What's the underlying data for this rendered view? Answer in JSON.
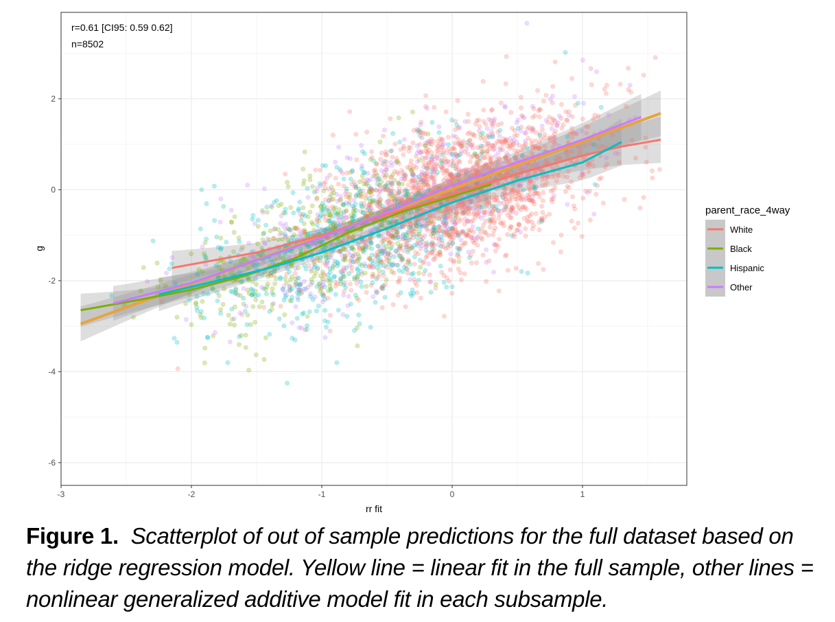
{
  "chart_data": {
    "type": "scatter",
    "annotations": [
      "r=0.61 [CI95: 0.59 0.62]",
      "n=8502"
    ],
    "xlabel": "rr fit",
    "ylabel": "g",
    "xlim": [
      -3.0,
      1.8
    ],
    "ylim": [
      -6.5,
      3.9
    ],
    "x_ticks": [
      -3,
      -2,
      -1,
      0,
      1
    ],
    "y_ticks": [
      -6,
      -4,
      -2,
      0,
      2
    ],
    "grid": true,
    "legend": {
      "title": "parent_race_4way",
      "position": "right",
      "entries": [
        "White",
        "Black",
        "Hispanic",
        "Other"
      ]
    },
    "series": [
      {
        "name": "White",
        "color": "#F8766D",
        "fit_line": [
          [
            -2.15,
            -1.72
          ],
          [
            -1.5,
            -1.38
          ],
          [
            -1.0,
            -1.0
          ],
          [
            -0.5,
            -0.55
          ],
          [
            0.0,
            -0.1
          ],
          [
            0.5,
            0.35
          ],
          [
            1.0,
            0.75
          ],
          [
            1.3,
            0.95
          ],
          [
            1.6,
            1.1
          ]
        ]
      },
      {
        "name": "Black",
        "color": "#7CAE00",
        "fit_line": [
          [
            -2.85,
            -2.65
          ],
          [
            -2.4,
            -2.42
          ],
          [
            -2.0,
            -2.2
          ],
          [
            -1.6,
            -1.9
          ],
          [
            -1.2,
            -1.5
          ],
          [
            -0.8,
            -0.95
          ],
          [
            -0.4,
            -0.5
          ],
          [
            0.0,
            -0.15
          ],
          [
            0.3,
            0.12
          ]
        ]
      },
      {
        "name": "Hispanic",
        "color": "#00BFC4",
        "fit_line": [
          [
            -2.25,
            -2.3
          ],
          [
            -1.8,
            -2.0
          ],
          [
            -1.4,
            -1.72
          ],
          [
            -1.0,
            -1.38
          ],
          [
            -0.5,
            -0.85
          ],
          [
            0.0,
            -0.28
          ],
          [
            0.5,
            0.2
          ],
          [
            1.0,
            0.6
          ],
          [
            1.3,
            1.05
          ]
        ]
      },
      {
        "name": "Other",
        "color": "#C77CFF",
        "fit_line": [
          [
            -2.6,
            -2.5
          ],
          [
            -2.0,
            -2.05
          ],
          [
            -1.5,
            -1.55
          ],
          [
            -1.0,
            -1.05
          ],
          [
            -0.5,
            -0.5
          ],
          [
            0.0,
            0.1
          ],
          [
            0.5,
            0.6
          ],
          [
            1.0,
            1.1
          ],
          [
            1.45,
            1.6
          ]
        ]
      }
    ],
    "overall_linear_fit": {
      "color": "#E8A33D",
      "line": [
        [
          -2.85,
          -2.95
        ],
        [
          1.6,
          1.68
        ]
      ]
    },
    "point_cloud": {
      "n": 8502,
      "center_x": -0.3,
      "sd_x": 0.75,
      "correlation": 0.61
    }
  },
  "caption": {
    "label": "Figure 1.",
    "text": "Scatterplot of out of sample predictions for the full dataset based on the ridge regression model. Yellow line = linear fit in the full sample, other lines = nonlinear generalized additive model fit in each subsample."
  }
}
